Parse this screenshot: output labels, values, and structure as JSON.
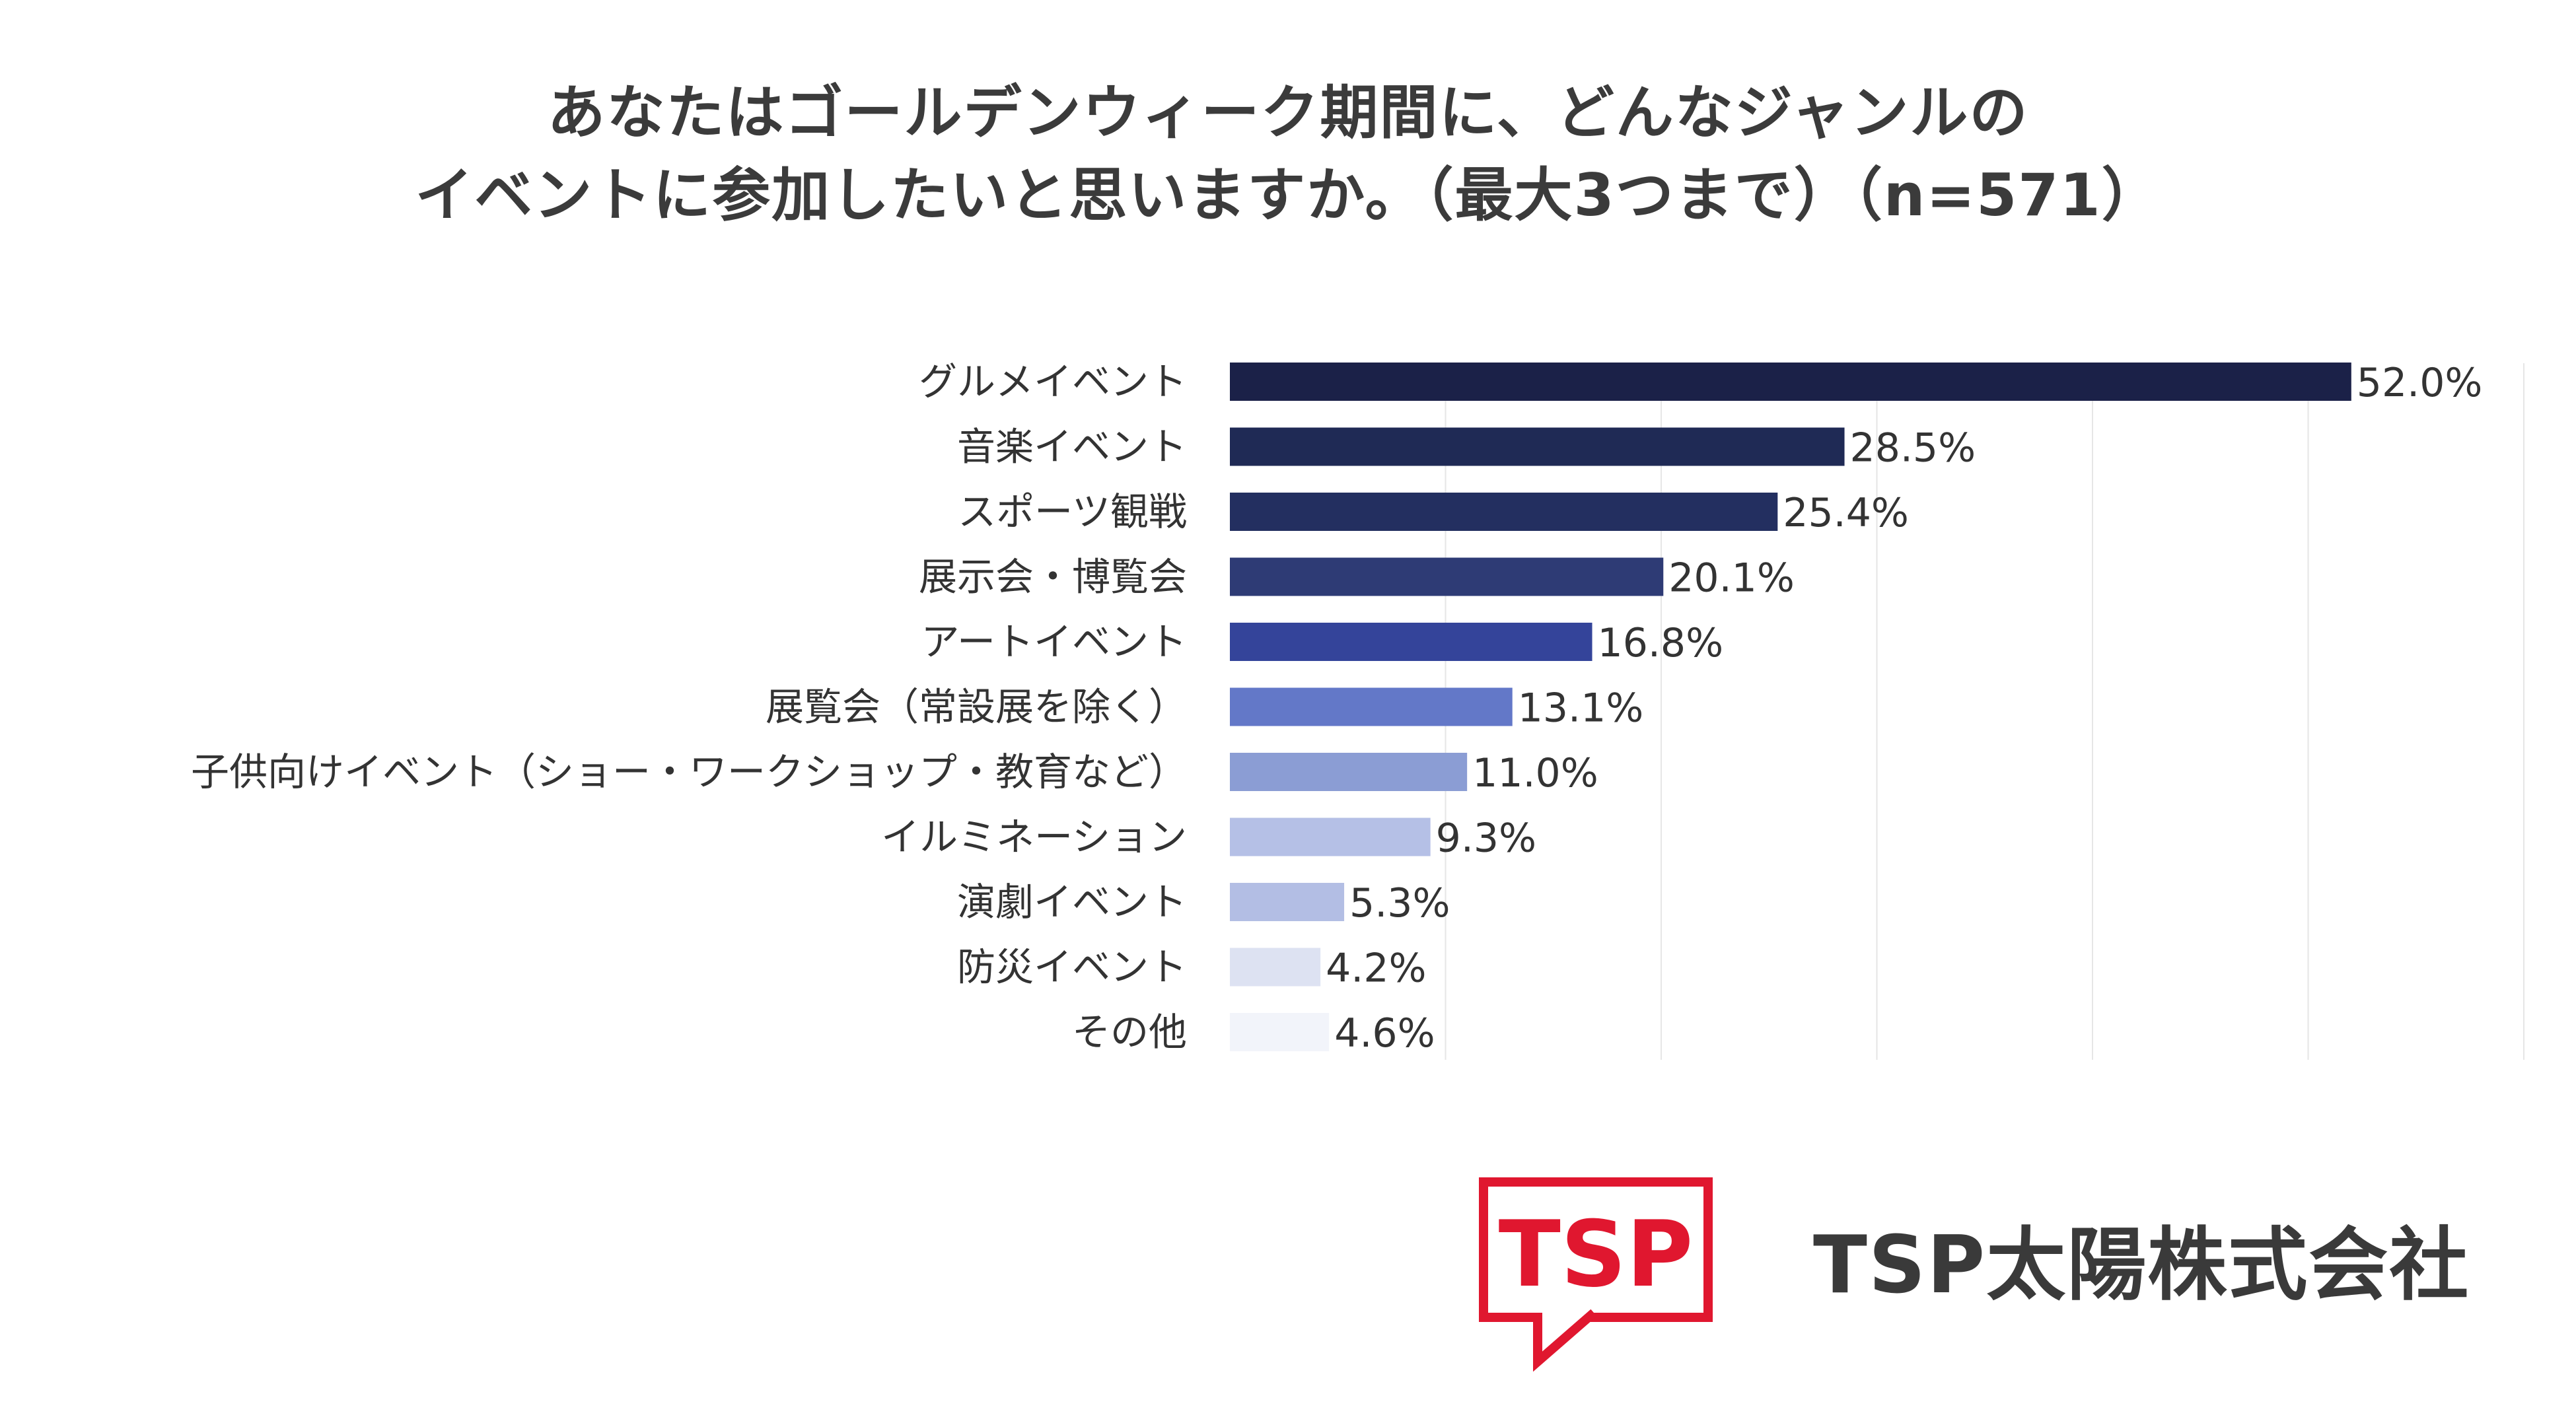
{
  "chart_data": {
    "type": "bar",
    "orientation": "horizontal",
    "title_lines": [
      "あなたはゴールデンウィーク期間に、どんなジャンルの",
      "イベントに参加したいと思いますか。（最大3つまで）（n=571）"
    ],
    "categories": [
      "グルメイベント",
      "音楽イベント",
      "スポーツ観戦",
      "展示会・博覧会",
      "アートイベント",
      "展覧会（常設展を除く）",
      "子供向けイベント（ショー・ワークショップ・教育など）",
      "イルミネーション",
      "演劇イベント",
      "防災イベント",
      "その他"
    ],
    "values": [
      52.0,
      28.5,
      25.4,
      20.1,
      16.8,
      13.1,
      11.0,
      9.3,
      5.3,
      4.2,
      4.6
    ],
    "value_labels": [
      "52.0%",
      "28.5%",
      "25.4%",
      "20.1%",
      "16.8%",
      "13.1%",
      "11.0%",
      "9.3%",
      "5.3%",
      "4.2%",
      "4.6%"
    ],
    "bar_colors": [
      "#1b2148",
      "#1f2a55",
      "#232f60",
      "#2e3b75",
      "#34449a",
      "#6378c8",
      "#8b9dd4",
      "#b5c0e6",
      "#b3bee4",
      "#dde2f2",
      "#f2f4fa"
    ],
    "xlim": [
      0,
      60
    ],
    "gridlines": [
      10,
      20,
      30,
      40,
      50,
      60
    ],
    "grid": true,
    "xlabel": "",
    "ylabel": ""
  },
  "logo": {
    "mark_text": "TSP",
    "company_name": "TSP太陽株式会社",
    "mark_color": "#e0172f"
  }
}
